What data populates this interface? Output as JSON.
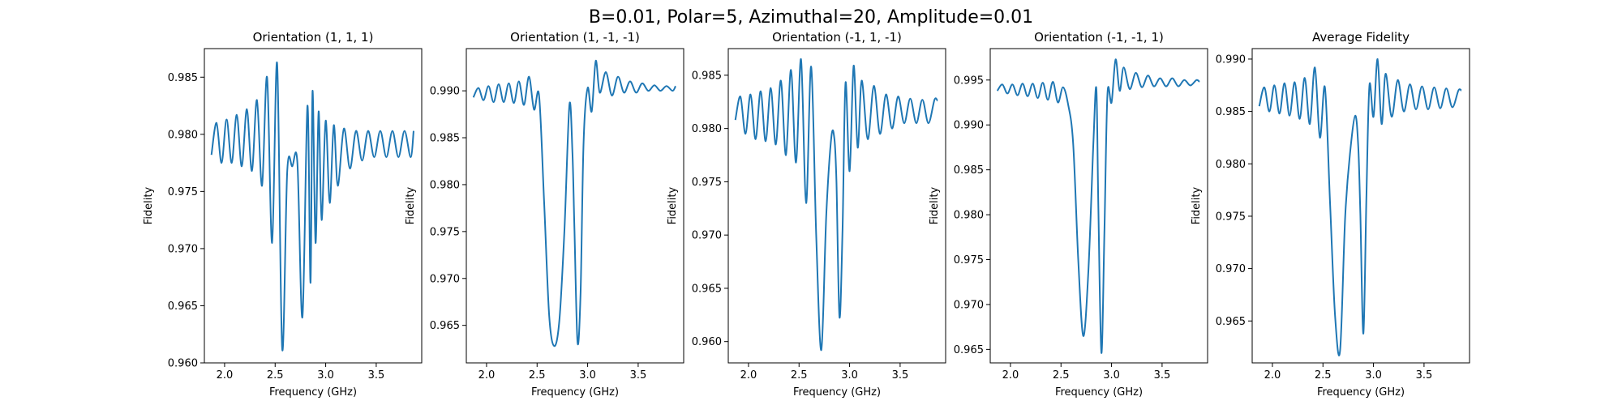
{
  "figure": {
    "suptitle": "B=0.01, Polar=5, Azimuthal=20, Amplitude=0.01"
  },
  "colors": {
    "line": "#1f77b4",
    "axes": "#000000",
    "background": "#ffffff"
  },
  "chart_data": [
    {
      "type": "line",
      "title": "Orientation (1, 1, 1)",
      "xlabel": "Frequency (GHz)",
      "ylabel": "Fidelity",
      "xlim": [
        1.8,
        3.95
      ],
      "ylim": [
        0.96,
        0.9875
      ],
      "xticks": [
        2.0,
        2.5,
        3.0,
        3.5
      ],
      "yticks": [
        0.96,
        0.965,
        0.97,
        0.975,
        0.98,
        0.985
      ],
      "grid": false,
      "x": [
        1.87,
        1.92,
        1.97,
        2.02,
        2.07,
        2.12,
        2.17,
        2.22,
        2.27,
        2.32,
        2.37,
        2.42,
        2.47,
        2.52,
        2.57,
        2.62,
        2.67,
        2.72,
        2.77,
        2.82,
        2.85,
        2.87,
        2.9,
        2.93,
        2.96,
        3.0,
        3.04,
        3.08,
        3.12,
        3.18,
        3.24,
        3.3,
        3.36,
        3.42,
        3.48,
        3.54,
        3.6,
        3.66,
        3.72,
        3.78,
        3.84,
        3.87
      ],
      "y": [
        0.9782,
        0.981,
        0.9775,
        0.9813,
        0.9775,
        0.9817,
        0.9772,
        0.9822,
        0.9768,
        0.983,
        0.9755,
        0.985,
        0.9705,
        0.9862,
        0.9612,
        0.9768,
        0.9772,
        0.9775,
        0.964,
        0.9825,
        0.967,
        0.9838,
        0.9705,
        0.982,
        0.9725,
        0.9812,
        0.974,
        0.9808,
        0.9755,
        0.9805,
        0.977,
        0.9803,
        0.9777,
        0.9803,
        0.978,
        0.9803,
        0.978,
        0.9803,
        0.978,
        0.9803,
        0.978,
        0.9803
      ]
    },
    {
      "type": "line",
      "title": "Orientation (1, -1, -1)",
      "xlabel": "Frequency (GHz)",
      "ylabel": "",
      "xlim": [
        1.8,
        3.95
      ],
      "ylim": [
        0.961,
        0.9945
      ],
      "xticks": [
        2.0,
        2.5,
        3.0,
        3.5
      ],
      "yticks": [
        0.965,
        0.97,
        0.975,
        0.98,
        0.985,
        0.99
      ],
      "grid": false,
      "x": [
        1.87,
        1.92,
        1.97,
        2.02,
        2.07,
        2.12,
        2.17,
        2.22,
        2.27,
        2.32,
        2.37,
        2.42,
        2.47,
        2.52,
        2.57,
        2.62,
        2.67,
        2.72,
        2.77,
        2.82,
        2.85,
        2.87,
        2.9,
        2.93,
        2.96,
        3.0,
        3.04,
        3.08,
        3.12,
        3.18,
        3.24,
        3.3,
        3.36,
        3.42,
        3.48,
        3.54,
        3.6,
        3.66,
        3.72,
        3.78,
        3.84,
        3.87
      ],
      "y": [
        0.9893,
        0.9903,
        0.989,
        0.9905,
        0.9888,
        0.9907,
        0.9888,
        0.9908,
        0.9887,
        0.991,
        0.9885,
        0.9915,
        0.988,
        0.9895,
        0.978,
        0.966,
        0.9628,
        0.9655,
        0.975,
        0.9885,
        0.9833,
        0.975,
        0.9632,
        0.9685,
        0.9845,
        0.9903,
        0.9878,
        0.9932,
        0.9898,
        0.992,
        0.9895,
        0.9915,
        0.9898,
        0.991,
        0.9898,
        0.9908,
        0.99,
        0.9906,
        0.99,
        0.9905,
        0.99,
        0.9905
      ]
    },
    {
      "type": "line",
      "title": "Orientation (-1, 1, -1)",
      "xlabel": "Frequency (GHz)",
      "ylabel": "",
      "xlim": [
        1.8,
        3.95
      ],
      "ylim": [
        0.958,
        0.9875
      ],
      "xticks": [
        2.0,
        2.5,
        3.0,
        3.5
      ],
      "yticks": [
        0.96,
        0.965,
        0.97,
        0.975,
        0.98,
        0.985
      ],
      "grid": false,
      "x": [
        1.87,
        1.92,
        1.97,
        2.02,
        2.07,
        2.12,
        2.17,
        2.22,
        2.27,
        2.32,
        2.37,
        2.42,
        2.47,
        2.52,
        2.57,
        2.62,
        2.67,
        2.72,
        2.77,
        2.82,
        2.85,
        2.87,
        2.9,
        2.93,
        2.96,
        3.0,
        3.04,
        3.08,
        3.12,
        3.18,
        3.24,
        3.3,
        3.36,
        3.42,
        3.48,
        3.54,
        3.6,
        3.66,
        3.72,
        3.78,
        3.84,
        3.87
      ],
      "y": [
        0.9808,
        0.983,
        0.9795,
        0.9832,
        0.979,
        0.9835,
        0.9788,
        0.9838,
        0.9785,
        0.9845,
        0.9775,
        0.9855,
        0.9768,
        0.9865,
        0.973,
        0.9858,
        0.97,
        0.9592,
        0.972,
        0.9792,
        0.979,
        0.975,
        0.9623,
        0.9705,
        0.9843,
        0.976,
        0.9859,
        0.9782,
        0.9845,
        0.979,
        0.984,
        0.9795,
        0.9832,
        0.98,
        0.983,
        0.9805,
        0.9828,
        0.9805,
        0.9827,
        0.9805,
        0.9827,
        0.9826
      ]
    },
    {
      "type": "line",
      "title": "Orientation (-1, -1, 1)",
      "xlabel": "Frequency (GHz)",
      "ylabel": "",
      "xlim": [
        1.8,
        3.95
      ],
      "ylim": [
        0.9635,
        0.9985
      ],
      "xticks": [
        2.0,
        2.5,
        3.0,
        3.5
      ],
      "yticks": [
        0.965,
        0.97,
        0.975,
        0.98,
        0.985,
        0.99,
        0.995
      ],
      "grid": false,
      "x": [
        1.87,
        1.92,
        1.97,
        2.02,
        2.07,
        2.12,
        2.17,
        2.22,
        2.27,
        2.32,
        2.37,
        2.42,
        2.47,
        2.52,
        2.57,
        2.62,
        2.67,
        2.72,
        2.77,
        2.82,
        2.85,
        2.87,
        2.9,
        2.93,
        2.96,
        3.0,
        3.04,
        3.08,
        3.12,
        3.18,
        3.24,
        3.3,
        3.36,
        3.42,
        3.48,
        3.54,
        3.6,
        3.66,
        3.72,
        3.78,
        3.84,
        3.87
      ],
      "y": [
        0.9938,
        0.9945,
        0.9935,
        0.9945,
        0.9933,
        0.9946,
        0.9932,
        0.9946,
        0.993,
        0.9947,
        0.9928,
        0.9948,
        0.9925,
        0.9942,
        0.9923,
        0.988,
        0.9752,
        0.9665,
        0.9735,
        0.9878,
        0.994,
        0.9805,
        0.9646,
        0.9785,
        0.9935,
        0.9925,
        0.9973,
        0.9938,
        0.9964,
        0.994,
        0.9958,
        0.9942,
        0.9955,
        0.9943,
        0.9952,
        0.9943,
        0.9952,
        0.9943,
        0.995,
        0.9944,
        0.995,
        0.9948
      ]
    },
    {
      "type": "line",
      "title": "Average Fidelity",
      "xlabel": "Frequency (GHz)",
      "ylabel": "",
      "xlim": [
        1.8,
        3.95
      ],
      "ylim": [
        0.961,
        0.991
      ],
      "xticks": [
        2.0,
        2.5,
        3.0,
        3.5
      ],
      "yticks": [
        0.965,
        0.97,
        0.975,
        0.98,
        0.985,
        0.99
      ],
      "grid": false,
      "x": [
        1.87,
        1.92,
        1.97,
        2.02,
        2.07,
        2.12,
        2.17,
        2.22,
        2.27,
        2.32,
        2.37,
        2.42,
        2.47,
        2.52,
        2.57,
        2.62,
        2.67,
        2.72,
        2.77,
        2.82,
        2.85,
        2.87,
        2.9,
        2.93,
        2.96,
        3.0,
        3.04,
        3.08,
        3.12,
        3.18,
        3.24,
        3.3,
        3.36,
        3.42,
        3.48,
        3.54,
        3.6,
        3.66,
        3.72,
        3.78,
        3.84,
        3.87
      ],
      "y": [
        0.9855,
        0.9873,
        0.985,
        0.9875,
        0.9848,
        0.9877,
        0.9846,
        0.9878,
        0.9843,
        0.9882,
        0.9838,
        0.9892,
        0.9825,
        0.9873,
        0.9763,
        0.9655,
        0.9622,
        0.975,
        0.9812,
        0.9846,
        0.9815,
        0.9752,
        0.9638,
        0.977,
        0.9875,
        0.9845,
        0.99,
        0.9838,
        0.9886,
        0.9845,
        0.988,
        0.985,
        0.9876,
        0.9852,
        0.9874,
        0.9852,
        0.9873,
        0.9853,
        0.9872,
        0.9854,
        0.987,
        0.987
      ]
    }
  ]
}
